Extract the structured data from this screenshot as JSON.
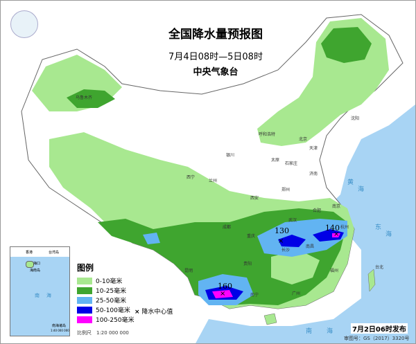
{
  "title": "全国降水量预报图",
  "subtitle": "7月4日08时—5日08时",
  "agency": "中央气象台",
  "center_values": [
    "130",
    "140",
    "160"
  ],
  "legend": {
    "title": "图例",
    "items": [
      {
        "label": "0-10毫米",
        "color": "#a8e890"
      },
      {
        "label": "10-25毫米",
        "color": "#3fa52f"
      },
      {
        "label": "25-50毫米",
        "color": "#62b4f2"
      },
      {
        "label": "50-100毫米",
        "color": "#0000e6"
      },
      {
        "label": "100-250毫米",
        "color": "#ff00ff"
      }
    ],
    "center_symbol": "×",
    "center_label": "降水中心值"
  },
  "scale": "比例尺　1:20 000 000",
  "inset": {
    "title": "南海诸岛",
    "scale": "1:40 000 000",
    "labels": [
      "香港",
      "台湾岛",
      "海口",
      "海南岛",
      "南",
      "海"
    ]
  },
  "issued": "7月2日06时发布",
  "review_number": "审图号：GS（2017）3320号",
  "cities": [
    "乌鲁木齐",
    "呼和浩特",
    "北京",
    "天津",
    "太原",
    "石家庄",
    "银川",
    "兰州",
    "西宁",
    "西安",
    "郑州",
    "济南",
    "合肥",
    "南京",
    "杭州",
    "武汉",
    "长沙",
    "南昌",
    "福州",
    "成都",
    "重庆",
    "贵阳",
    "昆明",
    "南宁",
    "广州",
    "台北",
    "沈阳"
  ],
  "seas": [
    "黄",
    "海",
    "东",
    "海",
    "南",
    "海"
  ],
  "colors": {
    "sea": "#a8d4f4",
    "land": "#ffffff"
  }
}
